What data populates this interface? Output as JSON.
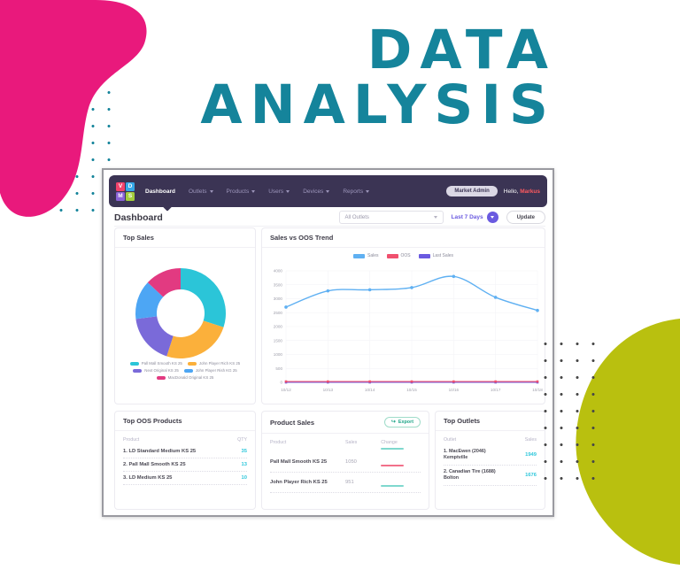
{
  "poster": {
    "title_line1": "DATA",
    "title_line2": "ANALYSIS",
    "title_color": "#15849B",
    "pink_blob_color": "#E9197C",
    "olive_blob_color": "#B9C00F",
    "teal_dots_color": "#15849B",
    "dark_dots_color": "#474747"
  },
  "navbar": {
    "logo_letters": [
      "V",
      "D",
      "M",
      "S"
    ],
    "logo_colors": [
      "#F0436B",
      "#35A8E8",
      "#8A63D6",
      "#A3CE3C"
    ],
    "background": "#3B3454",
    "items": [
      {
        "label": "Dashboard",
        "active": true,
        "has_dropdown": false
      },
      {
        "label": "Outlets",
        "active": false,
        "has_dropdown": true
      },
      {
        "label": "Products",
        "active": false,
        "has_dropdown": true
      },
      {
        "label": "Users",
        "active": false,
        "has_dropdown": true
      },
      {
        "label": "Devices",
        "active": false,
        "has_dropdown": true
      },
      {
        "label": "Reports",
        "active": false,
        "has_dropdown": true
      }
    ],
    "role_badge": "Market Admin",
    "greeting_prefix": "Hello,",
    "greeting_name": "Markus"
  },
  "page_header": {
    "title": "Dashboard",
    "outlet_select_value": "All Outlets",
    "date_range_label": "Last 7 Days",
    "update_label": "Update"
  },
  "cards": {
    "top_sales": {
      "title": "Top Sales"
    },
    "trend": {
      "title": "Sales vs OOS Trend"
    },
    "top_oos": {
      "title": "Top OOS Products",
      "columns": [
        "Product",
        "QTY"
      ],
      "rows": [
        {
          "product": "1. LD Standard Medium KS 25",
          "qty": "35"
        },
        {
          "product": "2. Pall Mall Smooth KS 25",
          "qty": "13"
        },
        {
          "product": "3. LD Medium KS 25",
          "qty": "10"
        }
      ]
    },
    "product_sales": {
      "title": "Product Sales",
      "export_label": "Export",
      "columns": [
        "Product",
        "Sales",
        "Change"
      ],
      "rows": [
        {
          "product": "Pall Mall Smooth KS 25",
          "sales": "1050",
          "change": "down"
        },
        {
          "product": "John Player Rich KS 25",
          "sales": "951",
          "change": "up"
        }
      ]
    },
    "top_outlets": {
      "title": "Top Outlets",
      "columns": [
        "Outlet",
        "Sales"
      ],
      "rows": [
        {
          "outlet": "1. MacEwen (2046)\nKemptville",
          "sales": "1949"
        },
        {
          "outlet": "2. Canadian Tire (1688)\nBolton",
          "sales": "1676"
        }
      ]
    }
  },
  "chart_data": [
    {
      "type": "pie",
      "donut": true,
      "title": "Top Sales",
      "labels": [
        "Pall Mall Smooth KS 25",
        "John Player Rich KS 25",
        "Next Original KS 25",
        "John Player Rish KG 25",
        "MacDonald Original KS 25"
      ],
      "values": [
        30,
        25,
        18,
        14,
        13
      ],
      "colors": [
        "#2BC5D8",
        "#FBB03B",
        "#7A6AD9",
        "#4DA6F4",
        "#E23A81"
      ],
      "legend_position": "bottom"
    },
    {
      "type": "line",
      "title": "Sales vs OOS Trend",
      "x": [
        "10/12",
        "10/13",
        "10/14",
        "10/15",
        "10/16",
        "10/17",
        "10/18"
      ],
      "series": [
        {
          "name": "Sales",
          "color": "#5FB0F2",
          "values": [
            2700,
            3280,
            3320,
            3400,
            3800,
            3050,
            2580
          ]
        },
        {
          "name": "OOS",
          "color": "#F0506E",
          "values": [
            30,
            30,
            30,
            30,
            30,
            30,
            30
          ]
        },
        {
          "name": "Last Sales",
          "color": "#6A5AE0",
          "values": [
            0,
            0,
            0,
            0,
            0,
            0,
            0
          ]
        }
      ],
      "ylim": [
        0,
        4000
      ],
      "ytick_step": 500,
      "grid": true,
      "legend_position": "top"
    }
  ],
  "accent_colors": {
    "teal_value": "#2EC7DB",
    "purple": "#6A5AE0",
    "export_green": "#1FA588",
    "change_up": "#7FD8CE",
    "change_down": "#F2708A"
  }
}
